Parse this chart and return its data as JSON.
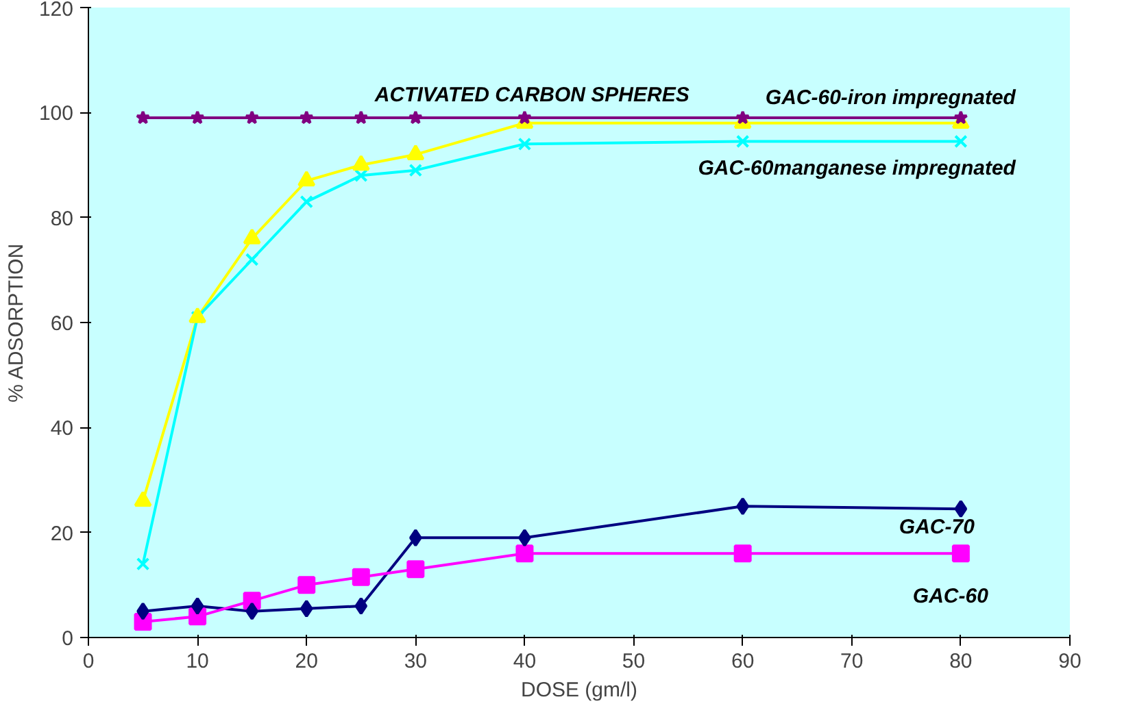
{
  "chart_data": {
    "type": "line",
    "xlabel": "DOSE (gm/l)",
    "ylabel": "% ADSORPTION",
    "x": [
      5,
      10,
      15,
      20,
      25,
      30,
      40,
      60,
      80
    ],
    "xlim": [
      0,
      90
    ],
    "xticks": [
      0,
      10,
      20,
      30,
      40,
      50,
      60,
      70,
      80,
      90
    ],
    "ylim": [
      0,
      120
    ],
    "yticks": [
      0,
      20,
      40,
      60,
      80,
      100,
      120
    ],
    "grid": false,
    "series": [
      {
        "name": "ACTIVATED CARBON SPHERES",
        "color": "#800080",
        "marker": "star",
        "values": [
          99,
          99,
          99,
          99,
          99,
          99,
          99,
          99,
          99
        ]
      },
      {
        "name": "GAC-60-iron impregnated",
        "color": "#ffff00",
        "marker": "triangle",
        "values": [
          26,
          61,
          76,
          87,
          90,
          92,
          98,
          98,
          98
        ]
      },
      {
        "name": "GAC-60manganese impregnated",
        "color": "#00ffff",
        "marker": "cross",
        "values": [
          14,
          61,
          72,
          83,
          88,
          89,
          94,
          94.5,
          94.5
        ]
      },
      {
        "name": "GAC-70",
        "color": "#000080",
        "marker": "diamond",
        "values": [
          5,
          6,
          5,
          5.5,
          6,
          19,
          19,
          25,
          24.5
        ]
      },
      {
        "name": "GAC-60",
        "color": "#ff00ff",
        "marker": "square",
        "values": [
          3,
          4,
          7,
          10,
          11.5,
          13,
          16,
          16,
          16
        ]
      }
    ]
  }
}
